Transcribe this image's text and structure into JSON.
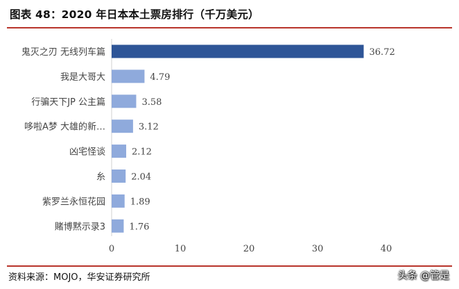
{
  "figure": {
    "title": "图表 48：2020 年日本本土票房排行（千万美元）",
    "source": "资料来源：MOJO，华安证券研究所",
    "watermark": "头条 @管是"
  },
  "chart_data": {
    "type": "bar",
    "orientation": "horizontal",
    "categories": [
      "鬼灭之刃 无线列车篇",
      "我是大哥大",
      "行骗天下JP 公主篇",
      "哆啦A梦 大雄的新…",
      "凶宅怪谈",
      "糸",
      "紫罗兰永恒花园",
      "賭博黙示录3"
    ],
    "values": [
      36.72,
      4.79,
      3.58,
      3.12,
      2.12,
      2.04,
      1.89,
      1.76
    ],
    "data_labels": [
      "36.72",
      "4.79",
      "3.58",
      "3.12",
      "2.12",
      "2.04",
      "1.89",
      "1.76"
    ],
    "xlim": [
      0,
      40
    ],
    "xticks": [
      0,
      10,
      20,
      30,
      40
    ],
    "grid": false,
    "colors": {
      "first_bar": "#2e5597",
      "other_bars": "#8faadc",
      "axis": "#d0d0d0",
      "text": "#444444"
    }
  }
}
